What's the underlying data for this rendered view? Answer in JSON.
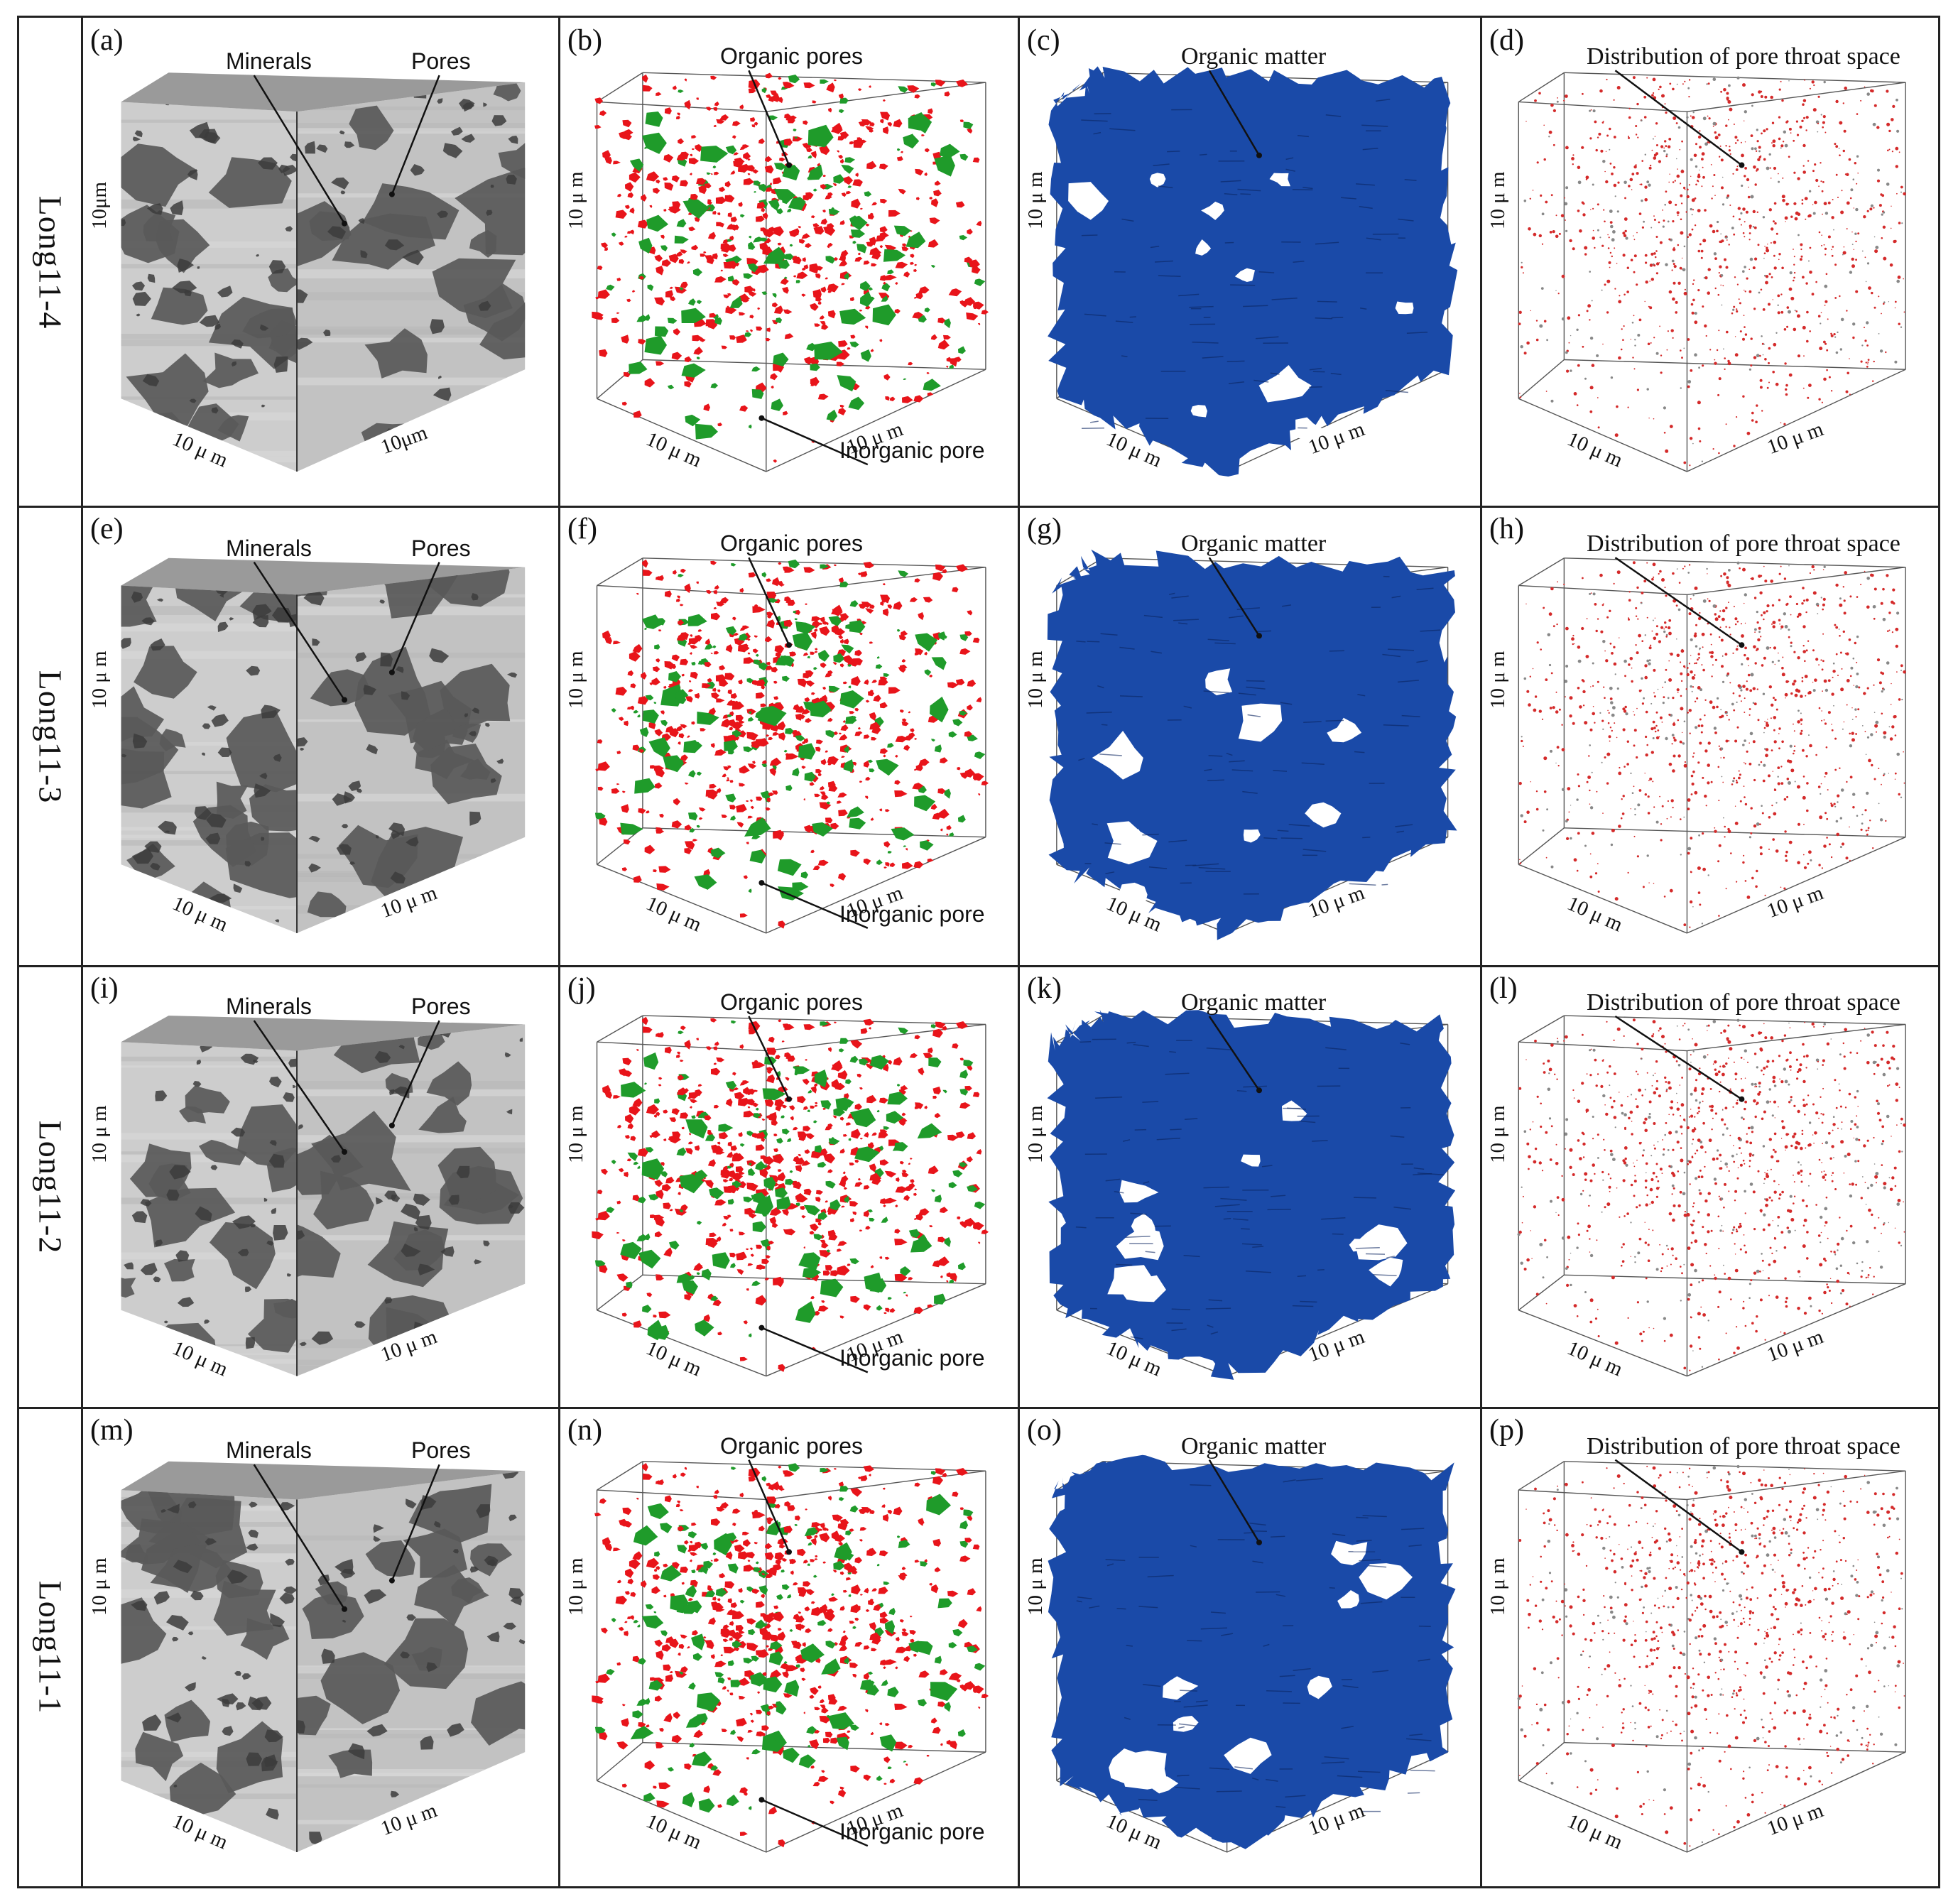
{
  "rows": [
    {
      "sample": "Long11-4",
      "panels": [
        {
          "letter": "(a)",
          "type": "sem",
          "labels": [
            "Minerals",
            "Pores"
          ],
          "axes": [
            "10μm",
            "10 μ m",
            "10μm"
          ]
        },
        {
          "letter": "(b)",
          "type": "pores",
          "labels": [
            "Organic pores",
            "Inorganic pore"
          ],
          "axes": [
            "10 μ m",
            "10 μ m",
            "10 μ m"
          ]
        },
        {
          "letter": "(c)",
          "type": "organic",
          "labels": [
            "Organic matter"
          ],
          "axes": [
            "10 μ m",
            "10 μ m",
            "10 μ m"
          ]
        },
        {
          "letter": "(d)",
          "type": "throat",
          "labels": [
            "Distribution of pore throat space"
          ],
          "axes": [
            "10 μ m",
            "10 μ m",
            "10 μ m"
          ]
        }
      ]
    },
    {
      "sample": "Long11-3",
      "panels": [
        {
          "letter": "(e)",
          "type": "sem",
          "labels": [
            "Minerals",
            "Pores"
          ],
          "axes": [
            "10 μ m",
            "10 μ m",
            "10 μ m"
          ]
        },
        {
          "letter": "(f)",
          "type": "pores",
          "labels": [
            "Organic pores",
            "Inorganic pore"
          ],
          "axes": [
            "10 μ m",
            "10 μ m",
            "10 μ m"
          ]
        },
        {
          "letter": "(g)",
          "type": "organic",
          "labels": [
            "Organic matter"
          ],
          "axes": [
            "10 μ m",
            "10 μ m",
            "10 μ m"
          ]
        },
        {
          "letter": "(h)",
          "type": "throat",
          "labels": [
            "Distribution of pore throat space"
          ],
          "axes": [
            "10 μ m",
            "10 μ m",
            "10 μ m"
          ]
        }
      ]
    },
    {
      "sample": "Long11-2",
      "panels": [
        {
          "letter": "(i)",
          "type": "sem",
          "labels": [
            "Minerals",
            "Pores"
          ],
          "axes": [
            "10 μ m",
            "10 μ m",
            "10 μ m"
          ]
        },
        {
          "letter": "(j)",
          "type": "pores",
          "labels": [
            "Organic pores",
            "Inorganic pore"
          ],
          "axes": [
            "10 μ m",
            "10 μ m",
            "10 μ m"
          ]
        },
        {
          "letter": "(k)",
          "type": "organic",
          "labels": [
            "Organic matter"
          ],
          "axes": [
            "10 μ m",
            "10 μ m",
            "10 μ m"
          ]
        },
        {
          "letter": "(l)",
          "type": "throat",
          "labels": [
            "Distribution of pore throat space"
          ],
          "axes": [
            "10 μ m",
            "10 μ m",
            "10 μ m"
          ]
        }
      ]
    },
    {
      "sample": "Long11-1",
      "panels": [
        {
          "letter": "(m)",
          "type": "sem",
          "labels": [
            "Minerals",
            "Pores"
          ],
          "axes": [
            "10 μ m",
            "10 μ m",
            "10 μ m"
          ]
        },
        {
          "letter": "(n)",
          "type": "pores",
          "labels": [
            "Organic pores",
            "Inorganic pore"
          ],
          "axes": [
            "10 μ m",
            "10 μ m",
            "10 μ m"
          ]
        },
        {
          "letter": "(o)",
          "type": "organic",
          "labels": [
            "Organic matter"
          ],
          "axes": [
            "10 μ m",
            "10 μ m",
            "10 μ m"
          ]
        },
        {
          "letter": "(p)",
          "type": "throat",
          "labels": [
            "Distribution of pore throat space"
          ],
          "axes": [
            "10 μ m",
            "10 μ m",
            "10 μ m"
          ]
        }
      ]
    }
  ],
  "colors": {
    "organic_pore": "#e8141a",
    "inorganic_pore": "#1f9b2a",
    "organic_matter": "#1a4aa8",
    "throat_dots": "#d42a2a",
    "sem_light": "#c9c9c9",
    "sem_dark": "#5a5a5a"
  }
}
